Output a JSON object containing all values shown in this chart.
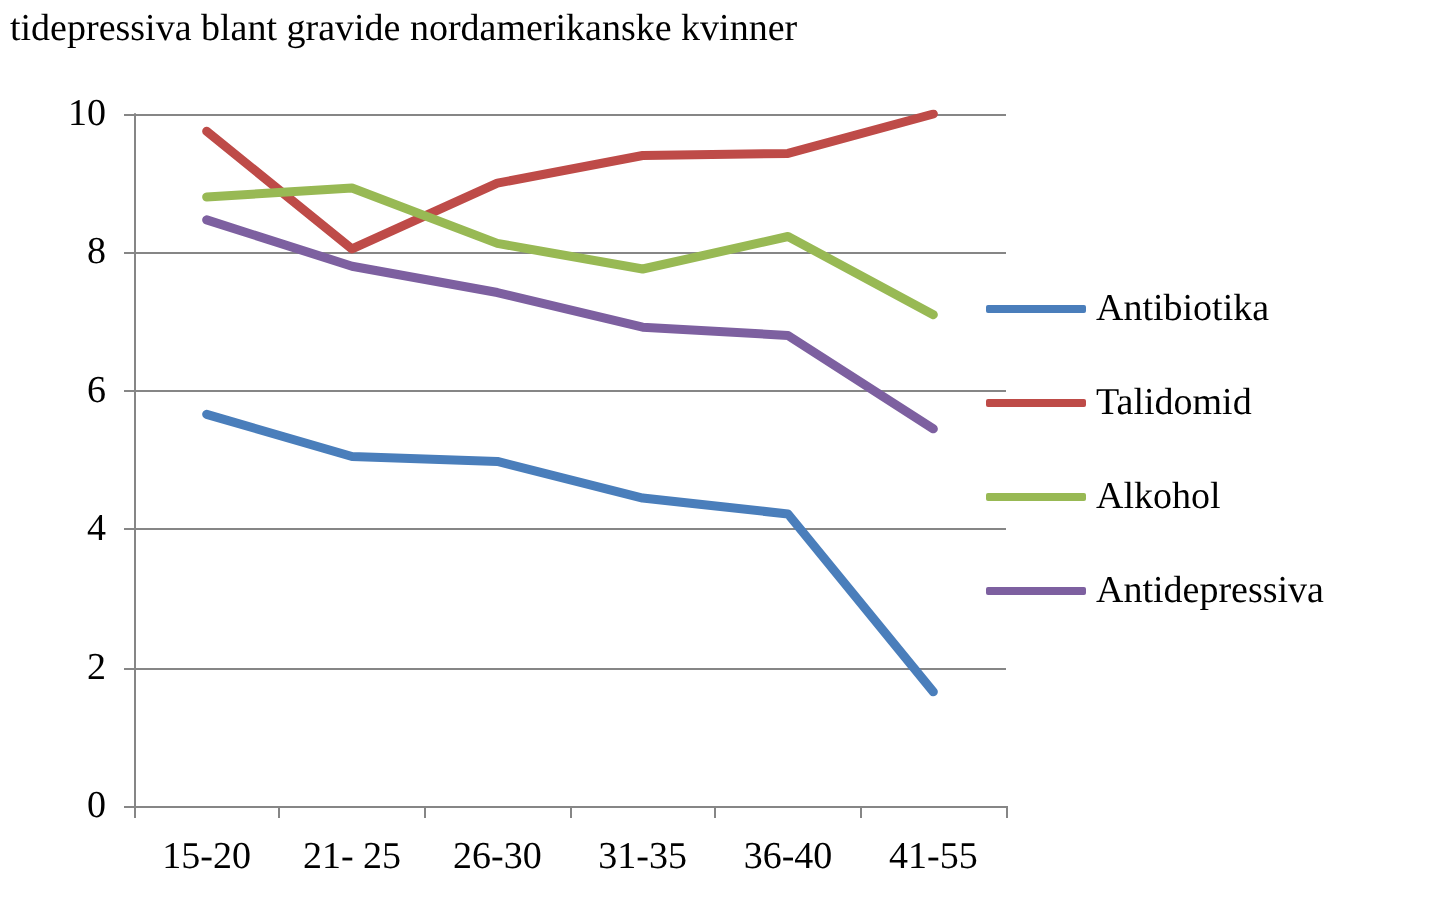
{
  "chart_data": {
    "type": "line",
    "title": "tidepressiva blant gravide nordamerikanske kvinner",
    "categories": [
      "15-20",
      "21- 25",
      "26-30",
      "31-35",
      "36-40",
      "41-55"
    ],
    "series": [
      {
        "name": "Antibiotika",
        "color": "#4a7ebb",
        "values": [
          5.66,
          5.05,
          4.98,
          4.45,
          4.22,
          1.65
        ]
      },
      {
        "name": "Talidomid",
        "color": "#be4b48",
        "values": [
          9.75,
          8.05,
          9.0,
          9.4,
          9.43,
          10.0
        ]
      },
      {
        "name": "Alkohol",
        "color": "#98b954",
        "values": [
          8.8,
          8.93,
          8.13,
          7.76,
          8.23,
          7.1
        ]
      },
      {
        "name": "Antidepressiva",
        "color": "#7d60a0",
        "values": [
          8.47,
          7.8,
          7.42,
          6.92,
          6.8,
          5.45
        ]
      }
    ],
    "ylim": [
      0,
      10
    ],
    "yticks": [
      0,
      2,
      4,
      6,
      8,
      10
    ],
    "grid": "y",
    "legend": "right",
    "marker": "none",
    "line_style": "solid"
  }
}
